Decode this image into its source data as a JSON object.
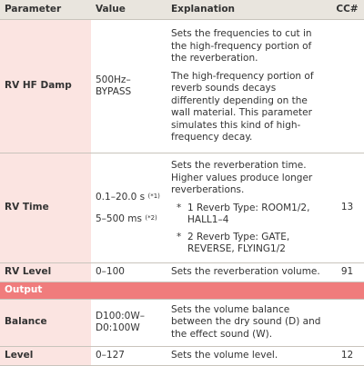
{
  "table": {
    "header": [
      "Parameter",
      "Value",
      "Explanation",
      "CC#"
    ],
    "rows": [
      {
        "parameter": "RV HF Damp",
        "values": [
          {
            "text": "500Hz–BYPASS"
          }
        ],
        "explanation": [
          "Sets the frequencies to cut in the high-frequency portion of the reverberation.",
          "The high-frequency portion of reverb sounds decays differently depending on the wall material. This parameter simulates this kind of high-frequency decay."
        ]
      },
      {
        "parameter": "RV Time",
        "values": [
          {
            "text": "0.1–20.0 s",
            "ref": "(*1)"
          },
          {
            "text": "5–500 ms",
            "ref": "(*2)"
          }
        ],
        "explanation": [
          "Sets the reverberation time. Higher values produce longer reverberations."
        ],
        "notes": [
          {
            "mark": "*",
            "text": "1 Reverb Type: ROOM1/2, HALL1–4"
          },
          {
            "mark": "*",
            "text": "2 Reverb Type: GATE, REVERSE, FLYING1/2"
          }
        ],
        "cc": "13"
      },
      {
        "parameter": "RV Level",
        "values": [
          {
            "text": "0–100"
          }
        ],
        "explanation": [
          "Sets the reverberation volume."
        ],
        "cc": "91"
      },
      {
        "section": "Output"
      },
      {
        "parameter": "Balance",
        "values": [
          {
            "text": "D100:0W–D0:100W"
          }
        ],
        "explanation": [
          "Sets the volume balance between the dry sound (D) and the effect sound (W)."
        ]
      },
      {
        "parameter": "Level",
        "values": [
          {
            "text": "0–127"
          }
        ],
        "explanation": [
          "Sets the volume level."
        ],
        "cc": "12"
      }
    ]
  }
}
